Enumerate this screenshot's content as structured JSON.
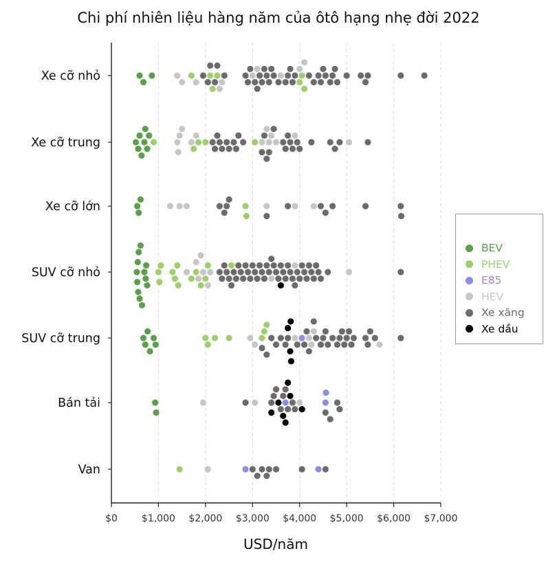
{
  "chart_data": {
    "type": "scatter",
    "subtype": "beeswarm",
    "title": "Chi phí nhiên liệu hàng năm của ôtô hạng nhẹ đời 2022",
    "xlabel": "USD/năm",
    "ylabel": "",
    "xlim": [
      0,
      7000
    ],
    "x_ticks": [
      0,
      1000,
      2000,
      3000,
      4000,
      5000,
      6000,
      7000
    ],
    "x_tick_labels": [
      "$0",
      "$1,000",
      "$2,000",
      "$3,000",
      "$4,000",
      "$5,000",
      "$6,000",
      "$7,000"
    ],
    "grid": "vertical dashed",
    "legend_position": "right",
    "categories": [
      "Xe cỡ nhỏ",
      "Xe cỡ trung",
      "Xe cỡ lớn",
      "SUV cỡ nhỏ",
      "SUV cỡ trung",
      "Bán tải",
      "Van"
    ],
    "series": [
      {
        "name": "BEV",
        "color": "#5aa04a",
        "values": {
          "Xe cỡ nhỏ": [
            600,
            680,
            860
          ],
          "Xe cỡ trung": [
            520,
            570,
            600,
            640,
            700,
            720,
            760,
            800
          ],
          "Xe cỡ lớn": [
            550,
            580,
            620
          ],
          "SUV cỡ nhỏ": [
            540,
            550,
            560,
            570,
            580,
            600,
            620,
            650,
            700,
            730,
            740,
            760
          ],
          "SUV cỡ trung": [
            680,
            720,
            770,
            820,
            900,
            940
          ],
          "Bán tải": [
            930,
            950
          ],
          "Van": []
        }
      },
      {
        "name": "PHEV",
        "color": "#9fcf6a",
        "values": {
          "Xe cỡ nhỏ": [
            1700,
            2100,
            2150,
            2250,
            4000,
            4050,
            4100
          ],
          "Xe cỡ trung": [
            900,
            1750,
            1850,
            2000,
            3050
          ],
          "Xe cỡ lớn": [
            2850,
            2870
          ],
          "SUV cỡ nhỏ": [
            1000,
            1020,
            1050,
            1300,
            1350,
            1400,
            1420,
            1700,
            1800,
            1900,
            2000,
            2050,
            2550
          ],
          "SUV cỡ trung": [
            2000,
            2050,
            2200,
            2500,
            3200,
            3250,
            3300
          ],
          "Bán tải": [],
          "Van": [
            1450
          ]
        }
      },
      {
        "name": "E85",
        "color": "#8a8ee8",
        "values": {
          "Xe cỡ nhỏ": [],
          "Xe cỡ trung": [],
          "Xe cỡ lớn": [],
          "SUV cỡ nhỏ": [],
          "SUV cỡ trung": [
            4050
          ],
          "Bán tải": [
            3700,
            4550,
            4560
          ],
          "Van": [
            2850,
            4400
          ]
        }
      },
      {
        "name": "HEV",
        "color": "#c6c6c6",
        "values": {
          "Xe cỡ nhỏ": [
            1400,
            1500,
            1800,
            2300,
            2350,
            3000,
            3100,
            3600,
            4000,
            4100
          ],
          "Xe cỡ trung": [
            1400,
            1420,
            1450,
            1500,
            1700,
            1800,
            3200,
            3300,
            3350,
            3400,
            3500,
            3900,
            5050
          ],
          "Xe cỡ lớn": [
            1250,
            1450,
            1600,
            3300,
            3900,
            4300
          ],
          "SUV cỡ nhỏ": [
            1600,
            1800,
            1850,
            1900,
            1950,
            2050,
            2100,
            3400,
            3900,
            5050
          ],
          "SUV cỡ trung": [
            2950,
            3050,
            3900,
            4200,
            4250,
            4300,
            5700
          ],
          "Bán tải": [
            1950,
            3050,
            4000
          ],
          "Van": [
            2050
          ]
        }
      },
      {
        "name": "Xe xăng",
        "color": "#6b6b6b",
        "values": {
          "Xe cỡ nhỏ": [
            1950,
            2050,
            2100,
            2200,
            2250,
            2400,
            2850,
            2900,
            2950,
            3050,
            3100,
            3150,
            3200,
            3250,
            3300,
            3350,
            3400,
            3450,
            3550,
            3700,
            3750,
            3800,
            3850,
            3900,
            4200,
            4300,
            4400,
            4450,
            4500,
            4550,
            4650,
            4700,
            4750,
            4800,
            5000,
            5300,
            5400,
            5450,
            6150,
            6650
          ],
          "Xe cỡ trung": [
            2150,
            2200,
            2250,
            2300,
            2350,
            2450,
            2500,
            2600,
            2650,
            2700,
            2800,
            3200,
            3250,
            3300,
            3350,
            3450,
            3650,
            3700,
            3750,
            3800,
            3850,
            3950,
            4000,
            4250,
            4650,
            4750,
            4850,
            5450
          ],
          "Xe cỡ lớn": [
            2300,
            2400,
            2450,
            2500,
            3300,
            3750,
            4450,
            4550,
            4700,
            5400,
            6150,
            6160
          ],
          "SUV cỡ nhỏ": [
            2300,
            2350,
            2400,
            2450,
            2500,
            2550,
            2600,
            2650,
            2700,
            2750,
            2800,
            2850,
            2900,
            2950,
            3000,
            3050,
            3100,
            3150,
            3200,
            3250,
            3300,
            3350,
            3400,
            3450,
            3500,
            3550,
            3600,
            3650,
            3700,
            3750,
            3800,
            3850,
            3900,
            3950,
            4000,
            4050,
            4100,
            4150,
            4200,
            4250,
            4300,
            4350,
            4400,
            4450,
            4600,
            6150
          ],
          "SUV cỡ trung": [
            3200,
            3300,
            3400,
            3500,
            3600,
            3700,
            3750,
            3950,
            4100,
            4150,
            4200,
            4300,
            4350,
            4450,
            4500,
            4550,
            4600,
            4700,
            4800,
            4850,
            4900,
            4950,
            5000,
            5050,
            5100,
            5150,
            5400,
            5450,
            5500,
            5600,
            6150
          ],
          "Bán tải": [
            2850,
            3400,
            3450,
            3500,
            3600,
            3650,
            3700,
            3750,
            3850,
            3900,
            4550,
            4650,
            4800,
            4850
          ],
          "Van": [
            3000,
            3100,
            3200,
            3300,
            3350,
            3500,
            4050,
            4550
          ]
        }
      },
      {
        "name": "Xe dầu",
        "color": "#000000",
        "values": {
          "Xe cỡ nhỏ": [],
          "Xe cỡ trung": [],
          "Xe cỡ lớn": [],
          "SUV cỡ nhỏ": [
            3600
          ],
          "SUV cỡ trung": [
            3750,
            3800,
            3810,
            3820
          ],
          "Bán tải": [
            3400,
            3550,
            3650,
            3700,
            3750,
            3800,
            4050
          ],
          "Van": []
        }
      }
    ]
  }
}
